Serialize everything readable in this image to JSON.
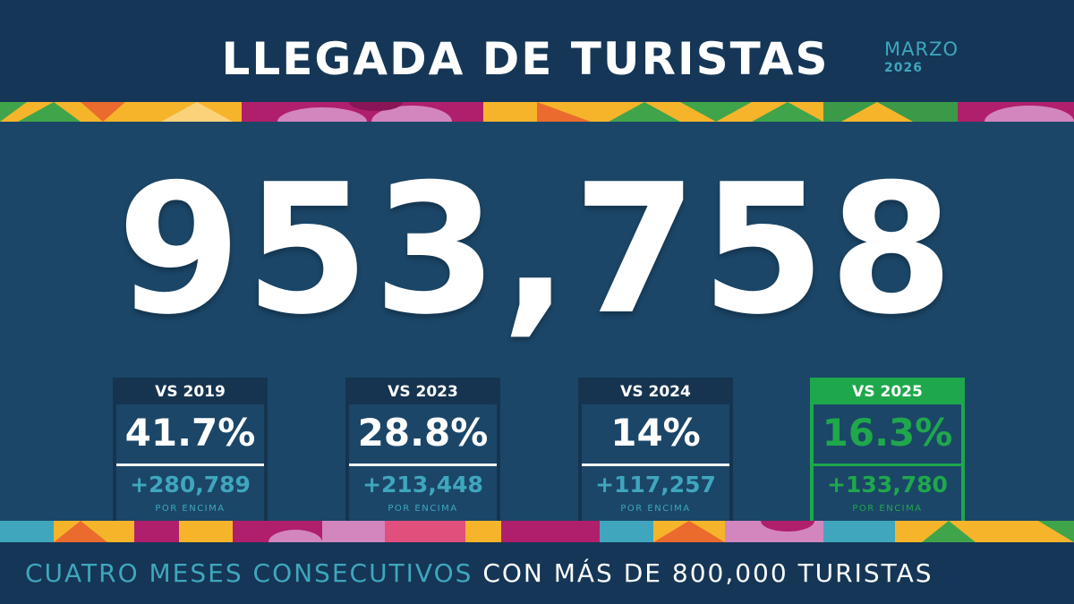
{
  "header": {
    "title": "LLEGADA DE TURISTAS",
    "month": "MARZO",
    "year": "2026"
  },
  "total": "953,758",
  "comparisons": [
    {
      "label": "VS 2019",
      "percent": "41.7%",
      "difference": "+280,789",
      "note": "POR ENCIMA"
    },
    {
      "label": "VS 2023",
      "percent": "28.8%",
      "difference": "+213,448",
      "note": "POR ENCIMA"
    },
    {
      "label": "VS 2024",
      "percent": "14%",
      "difference": "+117,257",
      "note": "POR ENCIMA"
    },
    {
      "label": "VS 2025",
      "percent": "16.3%",
      "difference": "+133,780",
      "note": "POR ENCIMA"
    }
  ],
  "footer": {
    "part1": "CUATRO MESES CONSECUTIVOS",
    "part2": "CON MÁS DE 800,000 TURISTAS"
  },
  "colors": {
    "background": "#173c5e",
    "header_bar": "#153656",
    "teal_accent": "#3fa6bd",
    "highlight_green": "#1ea84b",
    "magenta": "#b01f6b",
    "pink": "#d386bd",
    "yellow": "#f6b42a",
    "orange": "#ea6b2d",
    "green": "#40a44a"
  }
}
